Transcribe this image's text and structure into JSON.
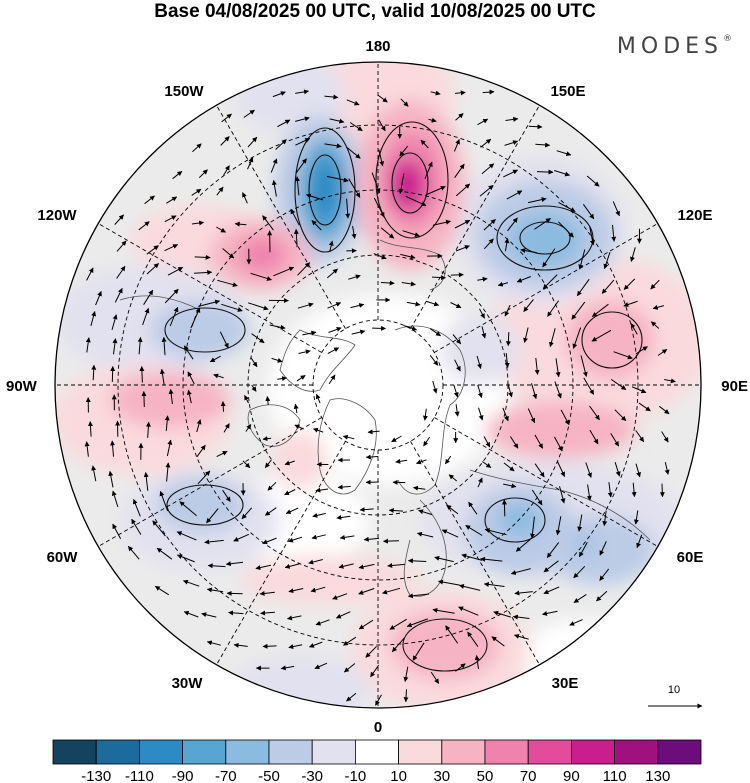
{
  "title": "Base 04/08/2025 00 UTC, valid 10/08/2025 00 UTC",
  "brand": "MODES",
  "brand_mark": "®",
  "lon_labels": {
    "top": "180",
    "bottom": "0",
    "left": "90W",
    "right": "90E",
    "upper_left": "150W",
    "upper_right": "150E",
    "mid_left_upper": "120W",
    "mid_right_upper": "120E",
    "mid_left_lower": "60W",
    "mid_right_lower": "60E",
    "lower_left": "30W",
    "lower_right": "30E"
  },
  "reference_vector": {
    "label": "10"
  },
  "colorbar": {
    "colors": [
      "#15425e",
      "#1d6b9c",
      "#2c8ac4",
      "#57a5d3",
      "#8cbbe0",
      "#bccbe6",
      "#e2e1ef",
      "#ffffff",
      "#fadadd",
      "#f6b3c3",
      "#ef83ad",
      "#e34c9d",
      "#cb1e8e",
      "#a0117f",
      "#6b0d7a"
    ],
    "labels": [
      "-130",
      "-110",
      "-90",
      "-70",
      "-50",
      "-30",
      "-10",
      "10",
      "30",
      "50",
      "70",
      "90",
      "110",
      "130"
    ]
  },
  "anomalies": [
    {
      "name": "trough-north-pacific",
      "fill": "#bccbe6"
    },
    {
      "name": "ridge-bering",
      "fill": "#ef83ad"
    },
    {
      "name": "trough-east-siberia",
      "fill": "#8cbbe0"
    },
    {
      "name": "ridge-alaska",
      "fill": "#f6b3c3"
    },
    {
      "name": "trough-canada",
      "fill": "#bccbe6"
    },
    {
      "name": "ridge-central-siberia",
      "fill": "#fadadd"
    },
    {
      "name": "ridge-siberia-south",
      "fill": "#f6b3c3"
    },
    {
      "name": "ridge-north-america",
      "fill": "#f6b3c3"
    },
    {
      "name": "trough-west-siberia",
      "fill": "#bccbe6"
    },
    {
      "name": "trough-north-atlantic",
      "fill": "#bccbe6"
    },
    {
      "name": "ridge-europe",
      "fill": "#f6b3c3"
    },
    {
      "name": "ridge-greenland",
      "fill": "#fadadd"
    }
  ]
}
